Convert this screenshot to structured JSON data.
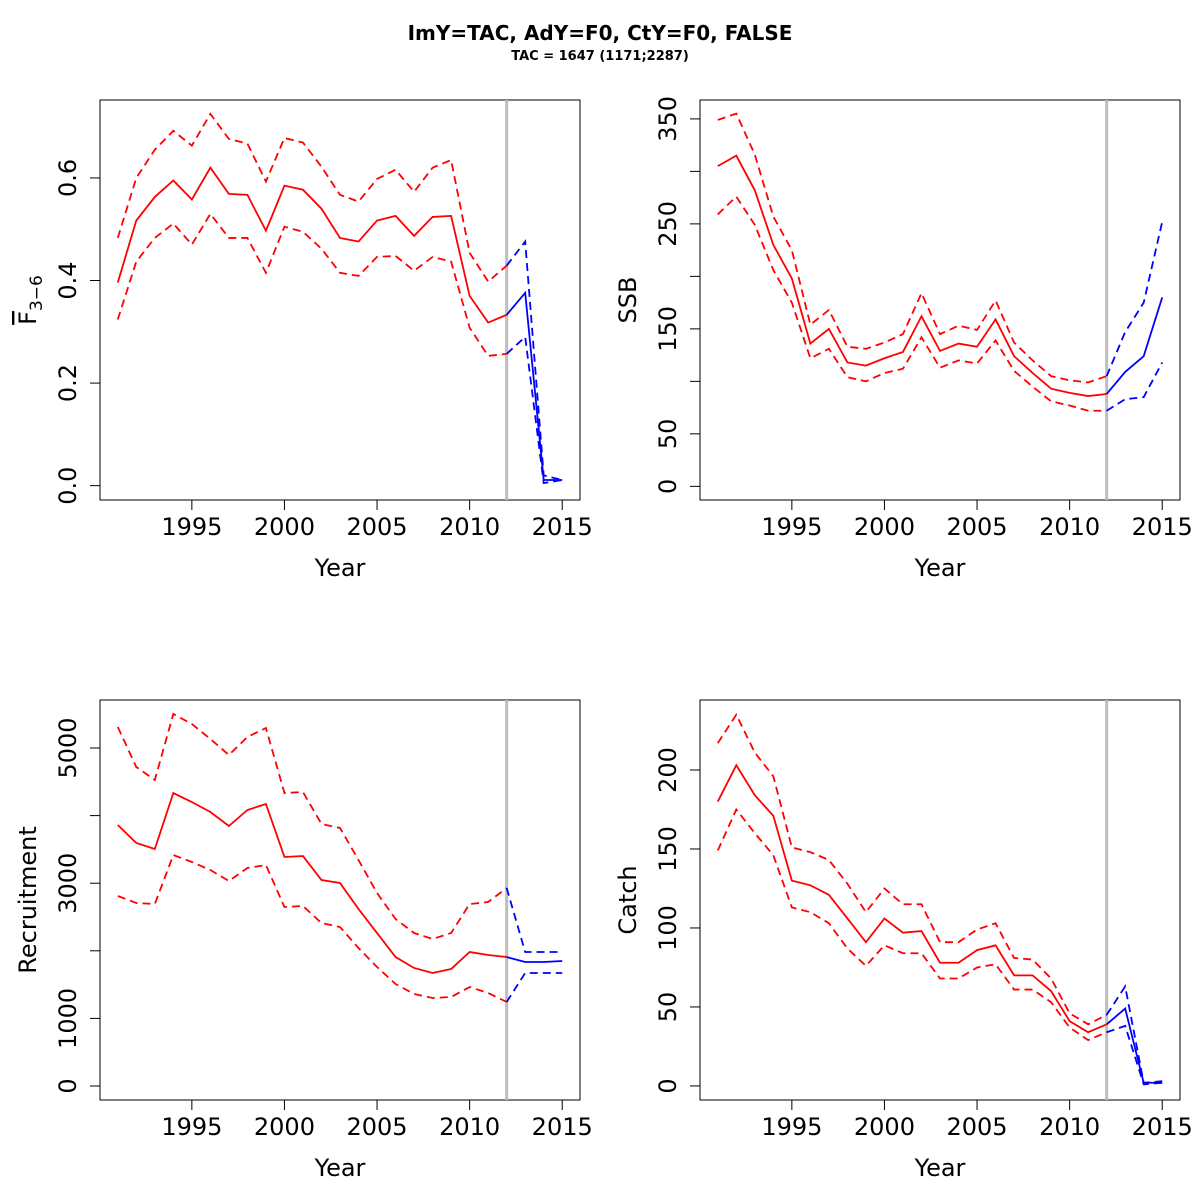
{
  "title": "ImY=TAC, AdY=F0, CtY=F0, FALSE",
  "subtitle": "TAC = 1647 (1171;2287)",
  "chart_data": [
    {
      "type": "line",
      "xlabel": "Year",
      "ylabel": "F",
      "ylabel_sub": "3−6",
      "ylabel_overline": true,
      "x": [
        1991,
        1992,
        1993,
        1994,
        1995,
        1996,
        1997,
        1998,
        1999,
        2000,
        2001,
        2002,
        2003,
        2004,
        2005,
        2006,
        2007,
        2008,
        2009,
        2010,
        2011,
        2012,
        2013,
        2014,
        2015
      ],
      "xlim": [
        1990.04,
        2015.96
      ],
      "xticks": [
        1995,
        2000,
        2005,
        2010,
        2015
      ],
      "ylim": [
        -0.028,
        0.752
      ],
      "yticks": [
        {
          "value": 0,
          "label": "0.0"
        },
        0.2,
        0.4,
        0.6
      ],
      "vline": {
        "x": 2012,
        "color": "#bebebe"
      },
      "series": [
        {
          "color": "#ff0000",
          "dashed": false,
          "values": [
            0.396,
            0.517,
            0.563,
            0.595,
            0.558,
            0.62,
            0.569,
            0.567,
            0.497,
            0.585,
            0.577,
            0.54,
            0.483,
            0.476,
            0.517,
            0.526,
            0.487,
            0.524,
            0.526,
            0.37,
            0.318,
            0.333,
            null,
            null,
            null
          ]
        },
        {
          "color": "#ff0000",
          "dashed": true,
          "values": [
            0.483,
            0.6,
            0.655,
            0.692,
            0.663,
            0.725,
            0.676,
            0.667,
            0.593,
            0.678,
            0.669,
            0.622,
            0.567,
            0.554,
            0.598,
            0.616,
            0.573,
            0.62,
            0.635,
            0.454,
            0.398,
            0.429,
            null,
            null,
            null
          ]
        },
        {
          "color": "#ff0000",
          "dashed": true,
          "values": [
            0.324,
            0.437,
            0.483,
            0.511,
            0.47,
            0.53,
            0.483,
            0.483,
            0.415,
            0.505,
            0.495,
            0.462,
            0.415,
            0.409,
            0.446,
            0.448,
            0.419,
            0.446,
            0.437,
            0.308,
            0.253,
            0.257,
            null,
            null,
            null
          ]
        },
        {
          "color": "#0000ff",
          "dashed": false,
          "values": [
            null,
            null,
            null,
            null,
            null,
            null,
            null,
            null,
            null,
            null,
            null,
            null,
            null,
            null,
            null,
            null,
            null,
            null,
            null,
            null,
            null,
            0.333,
            0.376,
            0.011,
            0.011
          ]
        },
        {
          "color": "#0000ff",
          "dashed": true,
          "values": [
            null,
            null,
            null,
            null,
            null,
            null,
            null,
            null,
            null,
            null,
            null,
            null,
            null,
            null,
            null,
            null,
            null,
            null,
            null,
            null,
            null,
            0.429,
            0.476,
            0.02,
            0.011
          ]
        },
        {
          "color": "#0000ff",
          "dashed": true,
          "values": [
            null,
            null,
            null,
            null,
            null,
            null,
            null,
            null,
            null,
            null,
            null,
            null,
            null,
            null,
            null,
            null,
            null,
            null,
            null,
            null,
            null,
            0.257,
            0.29,
            0.005,
            0.011
          ]
        }
      ]
    },
    {
      "type": "line",
      "xlabel": "Year",
      "ylabel": "SSB",
      "x": [
        1991,
        1992,
        1993,
        1994,
        1995,
        1996,
        1997,
        1998,
        1999,
        2000,
        2001,
        2002,
        2003,
        2004,
        2005,
        2006,
        2007,
        2008,
        2009,
        2010,
        2011,
        2012,
        2013,
        2014,
        2015
      ],
      "xlim": [
        1990.04,
        2015.96
      ],
      "xticks": [
        1995,
        2000,
        2005,
        2010,
        2015
      ],
      "ylim": [
        -13,
        368
      ],
      "yticks": [
        0,
        50,
        150,
        250,
        350
      ],
      "yminor": [
        100,
        200,
        300
      ],
      "vline": {
        "x": 2012,
        "color": "#bebebe"
      },
      "series": [
        {
          "color": "#ff0000",
          "dashed": false,
          "values": [
            305,
            315,
            282,
            230,
            198,
            136,
            150,
            118,
            115,
            122,
            128,
            162,
            129,
            136,
            133,
            159,
            124,
            108,
            93,
            89,
            86,
            88,
            null,
            null,
            null
          ]
        },
        {
          "color": "#ff0000",
          "dashed": true,
          "values": [
            349,
            355,
            316,
            257,
            225,
            154,
            168,
            133,
            131,
            137,
            145,
            184,
            145,
            153,
            149,
            177,
            137,
            120,
            105,
            101,
            99,
            105,
            null,
            null,
            null
          ]
        },
        {
          "color": "#ff0000",
          "dashed": true,
          "values": [
            259,
            276,
            249,
            206,
            175,
            122,
            131,
            104,
            100,
            108,
            112,
            142,
            113,
            120,
            117,
            139,
            110,
            95,
            81,
            77,
            72,
            72,
            null,
            null,
            null
          ]
        },
        {
          "color": "#0000ff",
          "dashed": false,
          "values": [
            null,
            null,
            null,
            null,
            null,
            null,
            null,
            null,
            null,
            null,
            null,
            null,
            null,
            null,
            null,
            null,
            null,
            null,
            null,
            null,
            null,
            88,
            109,
            124,
            180
          ]
        },
        {
          "color": "#0000ff",
          "dashed": true,
          "values": [
            null,
            null,
            null,
            null,
            null,
            null,
            null,
            null,
            null,
            null,
            null,
            null,
            null,
            null,
            null,
            null,
            null,
            null,
            null,
            null,
            null,
            105,
            147,
            175,
            252
          ]
        },
        {
          "color": "#0000ff",
          "dashed": true,
          "values": [
            null,
            null,
            null,
            null,
            null,
            null,
            null,
            null,
            null,
            null,
            null,
            null,
            null,
            null,
            null,
            null,
            null,
            null,
            null,
            null,
            null,
            72,
            83,
            85,
            118
          ]
        }
      ]
    },
    {
      "type": "line",
      "xlabel": "Year",
      "ylabel": "Recruitment",
      "x": [
        1991,
        1992,
        1993,
        1994,
        1995,
        1996,
        1997,
        1998,
        1999,
        2000,
        2001,
        2002,
        2003,
        2004,
        2005,
        2006,
        2007,
        2008,
        2009,
        2010,
        2011,
        2012,
        2013,
        2014,
        2015
      ],
      "xlim": [
        1990.04,
        2015.96
      ],
      "xticks": [
        1995,
        2000,
        2005,
        2010,
        2015
      ],
      "ylim": [
        -207,
        5710
      ],
      "yticks": [
        0,
        1000,
        3000,
        5000
      ],
      "yminor": [
        2000,
        4000
      ],
      "vline": {
        "x": 2012,
        "color": "#bebebe"
      },
      "series": [
        {
          "color": "#ff0000",
          "dashed": false,
          "values": [
            3861,
            3595,
            3506,
            4334,
            4201,
            4053,
            3846,
            4083,
            4172,
            3388,
            3402,
            3047,
            3003,
            2618,
            2263,
            1908,
            1746,
            1672,
            1731,
            1982,
            1938,
            1908,
            null,
            null,
            null
          ]
        },
        {
          "color": "#ff0000",
          "dashed": true,
          "values": [
            5311,
            4719,
            4527,
            5503,
            5355,
            5133,
            4896,
            5163,
            5296,
            4334,
            4349,
            3876,
            3817,
            3343,
            2855,
            2470,
            2263,
            2175,
            2263,
            2692,
            2722,
            2929,
            null,
            null,
            null
          ]
        },
        {
          "color": "#ff0000",
          "dashed": true,
          "values": [
            2811,
            2707,
            2692,
            3417,
            3314,
            3195,
            3033,
            3225,
            3269,
            2648,
            2663,
            2411,
            2352,
            2041,
            1760,
            1509,
            1361,
            1302,
            1317,
            1464,
            1376,
            1243,
            null,
            null,
            null
          ]
        },
        {
          "color": "#0000ff",
          "dashed": false,
          "values": [
            null,
            null,
            null,
            null,
            null,
            null,
            null,
            null,
            null,
            null,
            null,
            null,
            null,
            null,
            null,
            null,
            null,
            null,
            null,
            null,
            null,
            1908,
            1834,
            1834,
            1849
          ]
        },
        {
          "color": "#0000ff",
          "dashed": true,
          "values": [
            null,
            null,
            null,
            null,
            null,
            null,
            null,
            null,
            null,
            null,
            null,
            null,
            null,
            null,
            null,
            null,
            null,
            null,
            null,
            null,
            null,
            2929,
            1982,
            1982,
            1982
          ]
        },
        {
          "color": "#0000ff",
          "dashed": true,
          "values": [
            null,
            null,
            null,
            null,
            null,
            null,
            null,
            null,
            null,
            null,
            null,
            null,
            null,
            null,
            null,
            null,
            null,
            null,
            null,
            null,
            null,
            1243,
            1672,
            1672,
            1672
          ]
        }
      ]
    },
    {
      "type": "line",
      "xlabel": "Year",
      "ylabel": "Catch",
      "x": [
        1991,
        1992,
        1993,
        1994,
        1995,
        1996,
        1997,
        1998,
        1999,
        2000,
        2001,
        2002,
        2003,
        2004,
        2005,
        2006,
        2007,
        2008,
        2009,
        2010,
        2011,
        2012,
        2013,
        2014,
        2015
      ],
      "xlim": [
        1990.04,
        2015.96
      ],
      "xticks": [
        1995,
        2000,
        2005,
        2010,
        2015
      ],
      "ylim": [
        -8.9,
        244.3
      ],
      "yticks": [
        0,
        50,
        100,
        150,
        200
      ],
      "vline": {
        "x": 2012,
        "color": "#bebebe"
      },
      "series": [
        {
          "color": "#ff0000",
          "dashed": false,
          "values": [
            180,
            203,
            184,
            171,
            130,
            127,
            121,
            106,
            91,
            106,
            97,
            98,
            78,
            78,
            86,
            89,
            70,
            70,
            60,
            41,
            34,
            39,
            null,
            null,
            null
          ]
        },
        {
          "color": "#ff0000",
          "dashed": true,
          "values": [
            217,
            235,
            211,
            196,
            151,
            148,
            143,
            128,
            110,
            125,
            115,
            115,
            91,
            91,
            99,
            103,
            81,
            80,
            68,
            46,
            39,
            45,
            null,
            null,
            null
          ]
        },
        {
          "color": "#ff0000",
          "dashed": true,
          "values": [
            149,
            175,
            160,
            146,
            113,
            110,
            103,
            87,
            76,
            89,
            84,
            84,
            68,
            68,
            75,
            77,
            61,
            61,
            53,
            37,
            29,
            34,
            null,
            null,
            null
          ]
        },
        {
          "color": "#0000ff",
          "dashed": false,
          "values": [
            null,
            null,
            null,
            null,
            null,
            null,
            null,
            null,
            null,
            null,
            null,
            null,
            null,
            null,
            null,
            null,
            null,
            null,
            null,
            null,
            null,
            39,
            49,
            2,
            2
          ]
        },
        {
          "color": "#0000ff",
          "dashed": true,
          "values": [
            null,
            null,
            null,
            null,
            null,
            null,
            null,
            null,
            null,
            null,
            null,
            null,
            null,
            null,
            null,
            null,
            null,
            null,
            null,
            null,
            null,
            45,
            63,
            2,
            3
          ]
        },
        {
          "color": "#0000ff",
          "dashed": true,
          "values": [
            null,
            null,
            null,
            null,
            null,
            null,
            null,
            null,
            null,
            null,
            null,
            null,
            null,
            null,
            null,
            null,
            null,
            null,
            null,
            null,
            null,
            34,
            38,
            1,
            2
          ]
        }
      ]
    }
  ]
}
